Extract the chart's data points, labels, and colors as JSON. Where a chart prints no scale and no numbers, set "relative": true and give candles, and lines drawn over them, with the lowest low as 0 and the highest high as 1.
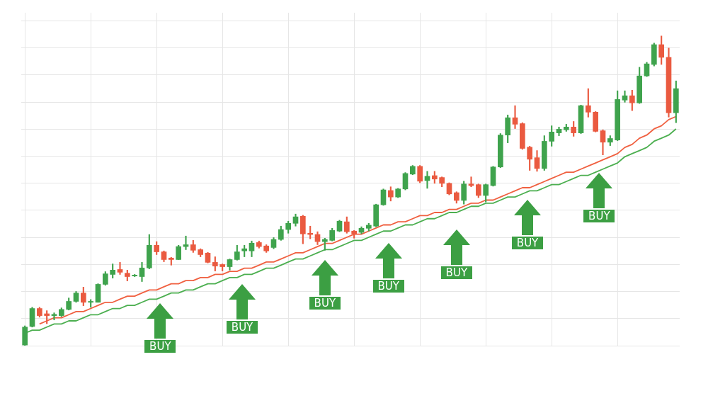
{
  "chart_data": {
    "type": "candlestick",
    "relative": true,
    "grid": true,
    "marker": "none",
    "line_style": "solid",
    "categories": [
      null,
      null,
      null,
      null,
      null,
      null,
      null,
      null,
      null,
      null,
      null,
      null,
      null,
      null,
      null,
      null,
      null,
      null,
      null,
      null,
      null,
      null,
      null,
      null,
      null,
      null,
      null,
      null,
      null,
      null,
      null,
      null,
      null,
      null,
      null,
      null,
      null,
      null,
      null,
      null,
      null,
      null,
      null,
      null,
      null,
      null,
      null,
      null,
      null,
      null,
      null,
      null,
      null,
      null,
      null,
      null,
      null,
      null,
      null,
      null,
      null,
      null,
      null,
      null,
      null,
      null,
      null,
      null,
      null,
      null,
      null,
      null,
      null,
      null,
      null,
      null,
      null,
      null,
      null,
      null,
      null,
      null,
      null,
      null,
      null,
      null,
      null,
      null,
      null,
      null
    ],
    "ohlc": [
      [
        0.002,
        0.064,
        0,
        0.06
      ],
      [
        0.062,
        0.124,
        0.06,
        0.12
      ],
      [
        0.12,
        0.124,
        0.092,
        0.097
      ],
      [
        0.103,
        0.113,
        0.071,
        0.097
      ],
      [
        0.097,
        0.106,
        0.083,
        0.101
      ],
      [
        0.097,
        0.122,
        0.094,
        0.117
      ],
      [
        0.117,
        0.154,
        0.115,
        0.143
      ],
      [
        0.143,
        0.175,
        0.14,
        0.17
      ],
      [
        0.17,
        0.189,
        0.129,
        0.14
      ],
      [
        0.14,
        0.149,
        0.124,
        0.143
      ],
      [
        0.14,
        0.2,
        0.14,
        0.198
      ],
      [
        0.198,
        0.239,
        0.195,
        0.232
      ],
      [
        0.23,
        0.264,
        0.218,
        0.244
      ],
      [
        0.246,
        0.269,
        0.23,
        0.237
      ],
      [
        0.234,
        0.244,
        0.209,
        0.223
      ],
      [
        0.225,
        0.23,
        0.223,
        0.228
      ],
      [
        0.223,
        0.269,
        0.207,
        0.251
      ],
      [
        0.251,
        0.359,
        0.248,
        0.324
      ],
      [
        0.324,
        0.336,
        0.294,
        0.303
      ],
      [
        0.303,
        0.306,
        0.271,
        0.278
      ],
      [
        0.283,
        0.285,
        0.26,
        0.278
      ],
      [
        0.278,
        0.324,
        0.278,
        0.32
      ],
      [
        0.32,
        0.354,
        0.31,
        0.326
      ],
      [
        0.326,
        0.34,
        0.301,
        0.308
      ],
      [
        0.31,
        0.313,
        0.287,
        0.294
      ],
      [
        0.299,
        0.301,
        0.267,
        0.269
      ],
      [
        0.269,
        0.287,
        0.241,
        0.257
      ],
      [
        0.262,
        0.264,
        0.241,
        0.255
      ],
      [
        0.255,
        0.28,
        0.244,
        0.278
      ],
      [
        0.278,
        0.324,
        0.276,
        0.303
      ],
      [
        0.306,
        0.324,
        0.287,
        0.313
      ],
      [
        0.306,
        0.338,
        0.287,
        0.331
      ],
      [
        0.333,
        0.338,
        0.315,
        0.32
      ],
      [
        0.322,
        0.326,
        0.301,
        0.306
      ],
      [
        0.317,
        0.349,
        0.313,
        0.343
      ],
      [
        0.343,
        0.386,
        0.34,
        0.375
      ],
      [
        0.375,
        0.402,
        0.363,
        0.395
      ],
      [
        0.395,
        0.425,
        0.386,
        0.416
      ],
      [
        0.418,
        0.421,
        0.329,
        0.361
      ],
      [
        0.363,
        0.386,
        0.345,
        0.359
      ],
      [
        0.359,
        0.368,
        0.326,
        0.336
      ],
      [
        0.336,
        0.347,
        0.308,
        0.343
      ],
      [
        0.34,
        0.379,
        0.338,
        0.372
      ],
      [
        0.37,
        0.405,
        0.368,
        0.402
      ],
      [
        0.4,
        0.416,
        0.363,
        0.368
      ],
      [
        0.37,
        0.372,
        0.347,
        0.361
      ],
      [
        0.366,
        0.384,
        0.361,
        0.379
      ],
      [
        0.379,
        0.395,
        0.37,
        0.389
      ],
      [
        0.386,
        0.457,
        0.384,
        0.455
      ],
      [
        0.455,
        0.506,
        0.453,
        0.503
      ],
      [
        0.501,
        0.513,
        0.467,
        0.48
      ],
      [
        0.48,
        0.508,
        0.478,
        0.506
      ],
      [
        0.506,
        0.559,
        0.503,
        0.556
      ],
      [
        0.554,
        0.582,
        0.552,
        0.579
      ],
      [
        0.579,
        0.582,
        0.526,
        0.531
      ],
      [
        0.533,
        0.563,
        0.508,
        0.547
      ],
      [
        0.549,
        0.563,
        0.524,
        0.538
      ],
      [
        0.543,
        0.545,
        0.513,
        0.524
      ],
      [
        0.524,
        0.526,
        0.487,
        0.49
      ],
      [
        0.494,
        0.497,
        0.46,
        0.469
      ],
      [
        0.469,
        0.531,
        0.457,
        0.522
      ],
      [
        0.522,
        0.545,
        0.513,
        0.517
      ],
      [
        0.52,
        0.522,
        0.478,
        0.485
      ],
      [
        0.485,
        0.522,
        0.464,
        0.52
      ],
      [
        0.517,
        0.579,
        0.515,
        0.577
      ],
      [
        0.577,
        0.685,
        0.575,
        0.68
      ],
      [
        0.68,
        0.745,
        0.655,
        0.736
      ],
      [
        0.736,
        0.775,
        0.701,
        0.715
      ],
      [
        0.717,
        0.72,
        0.634,
        0.637
      ],
      [
        0.641,
        0.644,
        0.566,
        0.602
      ],
      [
        0.607,
        0.63,
        0.563,
        0.572
      ],
      [
        0.572,
        0.678,
        0.566,
        0.66
      ],
      [
        0.66,
        0.71,
        0.644,
        0.69
      ],
      [
        0.687,
        0.706,
        0.678,
        0.699
      ],
      [
        0.697,
        0.715,
        0.692,
        0.706
      ],
      [
        0.706,
        0.724,
        0.676,
        0.687
      ],
      [
        0.687,
        0.777,
        0.685,
        0.775
      ],
      [
        0.775,
        0.83,
        0.738,
        0.754
      ],
      [
        0.754,
        0.756,
        0.69,
        0.692
      ],
      [
        0.694,
        0.697,
        0.616,
        0.657
      ],
      [
        0.657,
        0.678,
        0.646,
        0.669
      ],
      [
        0.664,
        0.823,
        0.662,
        0.795
      ],
      [
        0.793,
        0.823,
        0.786,
        0.807
      ],
      [
        0.807,
        0.825,
        0.759,
        0.784
      ],
      [
        0.784,
        0.899,
        0.782,
        0.871
      ],
      [
        0.871,
        0.915,
        0.869,
        0.91
      ],
      [
        0.908,
        0.977,
        0.903,
        0.972
      ],
      [
        0.972,
        1,
        0.908,
        0.931
      ],
      [
        0.931,
        0.961,
        0.738,
        0.752
      ],
      [
        0.752,
        0.855,
        0.72,
        0.83
      ]
    ],
    "colors": [
      "#3fa34d",
      "#3fa34d",
      "#ea5a40",
      "#ea5a40",
      "#3fa34d",
      "#3fa34d",
      "#3fa34d",
      "#3fa34d",
      "#ea5a40",
      "#3fa34d",
      "#3fa34d",
      "#3fa34d",
      "#3fa34d",
      "#ea5a40",
      "#ea5a40",
      "#3fa34d",
      "#3fa34d",
      "#3fa34d",
      "#ea5a40",
      "#ea5a40",
      "#ea5a40",
      "#3fa34d",
      "#3fa34d",
      "#ea5a40",
      "#ea5a40",
      "#ea5a40",
      "#ea5a40",
      "#ea5a40",
      "#3fa34d",
      "#3fa34d",
      "#3fa34d",
      "#3fa34d",
      "#ea5a40",
      "#ea5a40",
      "#3fa34d",
      "#3fa34d",
      "#3fa34d",
      "#3fa34d",
      "#ea5a40",
      "#ea5a40",
      "#ea5a40",
      "#3fa34d",
      "#3fa34d",
      "#3fa34d",
      "#ea5a40",
      "#ea5a40",
      "#3fa34d",
      "#3fa34d",
      "#3fa34d",
      "#3fa34d",
      "#ea5a40",
      "#3fa34d",
      "#3fa34d",
      "#3fa34d",
      "#ea5a40",
      "#3fa34d",
      "#ea5a40",
      "#ea5a40",
      "#ea5a40",
      "#ea5a40",
      "#3fa34d",
      "#ea5a40",
      "#ea5a40",
      "#3fa34d",
      "#3fa34d",
      "#3fa34d",
      "#3fa34d",
      "#ea5a40",
      "#ea5a40",
      "#ea5a40",
      "#ea5a40",
      "#3fa34d",
      "#3fa34d",
      "#3fa34d",
      "#3fa34d",
      "#ea5a40",
      "#3fa34d",
      "#ea5a40",
      "#ea5a40",
      "#ea5a40",
      "#3fa34d",
      "#3fa34d",
      "#3fa34d",
      "#ea5a40",
      "#3fa34d",
      "#3fa34d",
      "#3fa34d",
      "#ea5a40",
      "#ea5a40",
      "#3fa34d"
    ],
    "series": [
      {
        "type": "line",
        "color": "#f06040",
        "values": [
          null,
          null,
          0.07,
          0.08,
          0.09,
          0.09,
          0.1,
          0.11,
          0.11,
          0.12,
          0.13,
          0.14,
          0.14,
          0.15,
          0.16,
          0.16,
          0.17,
          0.18,
          0.18,
          0.19,
          0.2,
          0.2,
          0.21,
          0.21,
          0.22,
          0.22,
          0.23,
          0.23,
          0.24,
          0.24,
          0.25,
          0.25,
          0.26,
          0.27,
          0.27,
          0.28,
          0.29,
          0.3,
          0.3,
          0.31,
          0.32,
          0.33,
          0.33,
          0.34,
          0.35,
          0.36,
          0.36,
          0.37,
          0.38,
          0.39,
          0.39,
          0.4,
          0.4,
          0.41,
          0.42,
          0.42,
          0.43,
          0.43,
          0.44,
          0.44,
          0.45,
          0.46,
          0.46,
          0.47,
          0.47,
          0.48,
          0.49,
          0.5,
          0.51,
          0.51,
          0.52,
          0.53,
          0.54,
          0.55,
          0.56,
          0.56,
          0.57,
          0.58,
          0.59,
          0.6,
          0.61,
          0.62,
          0.64,
          0.65,
          0.67,
          0.68,
          0.7,
          0.71,
          0.73,
          0.74
        ]
      },
      {
        "type": "line",
        "color": "#4caf50",
        "values": [
          0.04,
          0.05,
          0.05,
          0.06,
          0.07,
          0.07,
          0.08,
          0.08,
          0.09,
          0.1,
          0.1,
          0.11,
          0.12,
          0.12,
          0.13,
          0.13,
          0.14,
          0.15,
          0.15,
          0.16,
          0.17,
          0.17,
          0.18,
          0.18,
          0.19,
          0.2,
          0.2,
          0.21,
          0.22,
          0.22,
          0.23,
          0.23,
          0.24,
          0.25,
          0.25,
          0.26,
          0.27,
          0.28,
          0.28,
          0.29,
          0.3,
          0.31,
          0.31,
          0.32,
          0.33,
          0.34,
          0.34,
          0.35,
          0.36,
          0.37,
          0.37,
          0.38,
          0.39,
          0.39,
          0.4,
          0.41,
          0.41,
          0.42,
          0.43,
          0.43,
          0.44,
          0.45,
          0.45,
          0.46,
          0.46,
          0.47,
          0.48,
          0.48,
          0.49,
          0.5,
          0.5,
          0.51,
          0.52,
          0.52,
          0.53,
          0.54,
          0.55,
          0.55,
          0.56,
          0.57,
          0.58,
          0.59,
          0.61,
          0.62,
          0.63,
          0.64,
          0.66,
          0.67,
          0.68,
          0.7
        ]
      }
    ],
    "annotations": [
      "BUY",
      "BUY",
      "BUY",
      "BUY",
      "BUY",
      "BUY",
      "BUY"
    ]
  }
}
